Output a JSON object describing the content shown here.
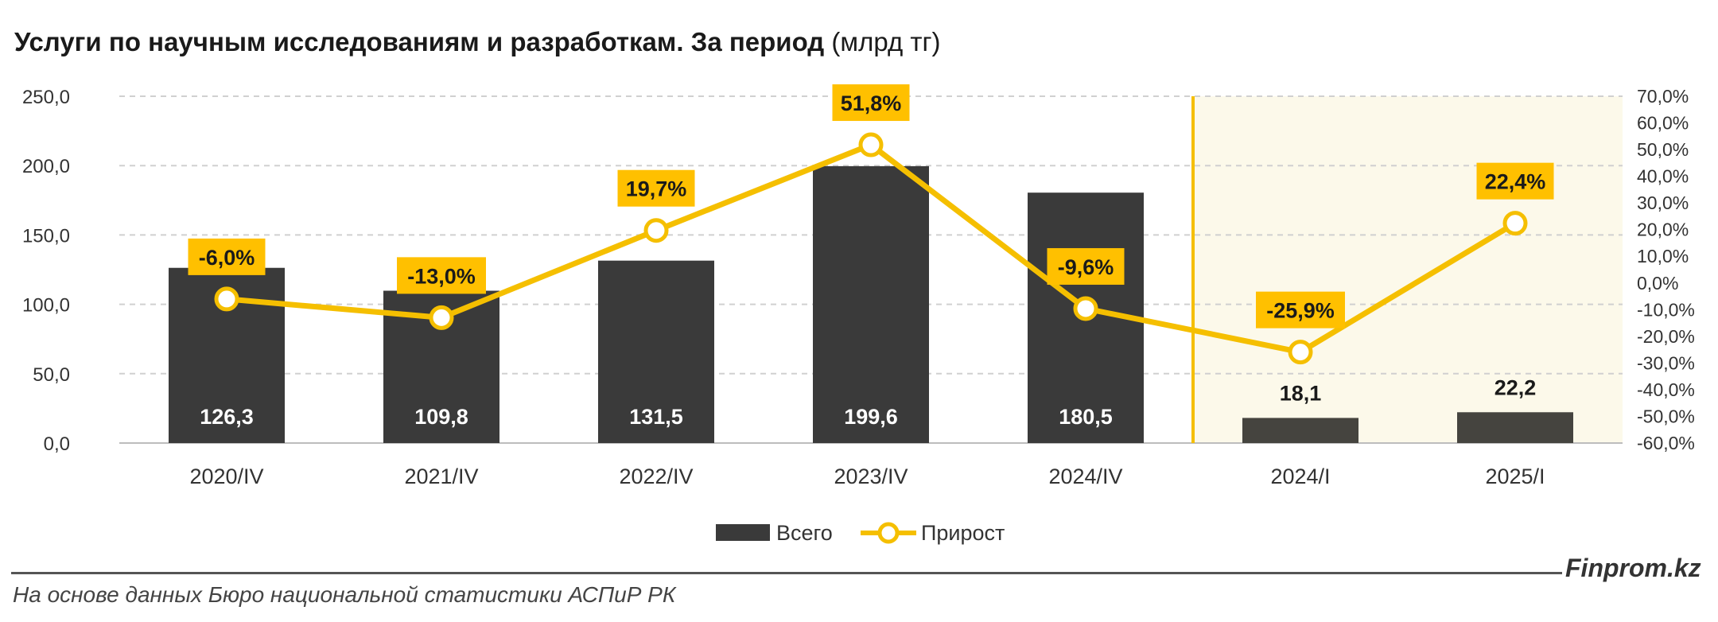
{
  "title": {
    "bold": "Услуги по научным исследованиям и разработкам. За период",
    "unit": "(млрд тг)"
  },
  "brand": "Finprom.kz",
  "source": "На основе данных Бюро национальной статистики АСПиР РК",
  "colors": {
    "bar_annual": "#3a3a3a",
    "bar_quarter": "#45443f",
    "line": "#f5bf00",
    "label_bg": "#ffc000",
    "highlight_bg": "#fcf9ea",
    "grid": "#d0d0d0"
  },
  "chart_data": {
    "type": "bar",
    "categories": [
      "2020/IV",
      "2021/IV",
      "2022/IV",
      "2023/IV",
      "2024/IV",
      "2024/I",
      "2025/I"
    ],
    "series": [
      {
        "name": "Всего",
        "type": "bar",
        "axis": "left",
        "values": [
          126.3,
          109.8,
          131.5,
          199.6,
          180.5,
          18.1,
          22.2
        ],
        "labels": [
          "126,3",
          "109,8",
          "131,5",
          "199,6",
          "180,5",
          "18,1",
          "22,2"
        ]
      },
      {
        "name": "Прирост",
        "type": "line",
        "axis": "right",
        "values": [
          -6.0,
          -13.0,
          19.7,
          51.8,
          -9.6,
          -25.9,
          22.4
        ],
        "labels": [
          "-6,0%",
          "-13,0%",
          "19,7%",
          "51,8%",
          "-9,6%",
          "-25,9%",
          "22,4%"
        ]
      }
    ],
    "y_left": {
      "min": 0,
      "max": 250,
      "ticks": [
        "0,0",
        "50,0",
        "100,0",
        "150,0",
        "200,0",
        "250,0"
      ]
    },
    "y_right": {
      "min": -60,
      "max": 70,
      "ticks": [
        "-60,0%",
        "-50,0%",
        "-40,0%",
        "-30,0%",
        "-20,0%",
        "-10,0%",
        "0,0%",
        "10,0%",
        "20,0%",
        "30,0%",
        "40,0%",
        "50,0%",
        "60,0%",
        "70,0%"
      ]
    },
    "highlight_from_category": "2024/I",
    "grid": true,
    "legend": "bottom-center"
  }
}
